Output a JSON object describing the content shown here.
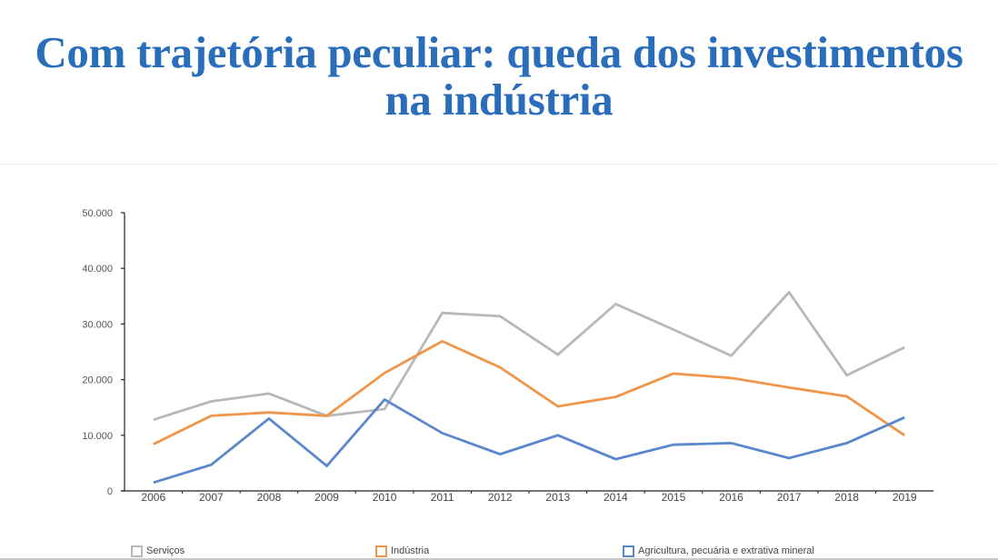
{
  "header": {
    "title_line1": "Com trajetória peculiar: queda dos investimentos",
    "title_line2": "na indústria"
  },
  "chart_data": {
    "type": "line",
    "title": "Com trajetória peculiar: queda dos investimentos na indústria",
    "xlabel": "",
    "ylabel": "",
    "categories": [
      "2006",
      "2007",
      "2008",
      "2009",
      "2010",
      "2011",
      "2012",
      "2013",
      "2014",
      "2015",
      "2016",
      "2017",
      "2018",
      "2019"
    ],
    "ylim": [
      0,
      50000
    ],
    "yticks": [
      0,
      10000,
      20000,
      30000,
      40000,
      50000
    ],
    "ytick_labels": [
      "0",
      "10.000",
      "20.000",
      "30.000",
      "40.000",
      "50.000"
    ],
    "grid": false,
    "legend_position": "bottom",
    "series": [
      {
        "name": "Serviços",
        "color": "#b8b8b8",
        "values": [
          12800,
          16100,
          17500,
          13500,
          14700,
          32000,
          31400,
          24500,
          33600,
          29000,
          24300,
          35700,
          20800,
          25800
        ]
      },
      {
        "name": "Indústria",
        "color": "#f0964a",
        "values": [
          8400,
          13500,
          14100,
          13500,
          21200,
          26900,
          22200,
          15200,
          16900,
          21100,
          20300,
          18600,
          17000,
          10000
        ]
      },
      {
        "name": "Agricultura, pecuária e extrativa mineral",
        "color": "#5b87cc",
        "values": [
          1500,
          4700,
          13000,
          4500,
          16400,
          10400,
          6600,
          10000,
          5700,
          8300,
          8600,
          5900,
          8600,
          13200
        ]
      }
    ]
  }
}
